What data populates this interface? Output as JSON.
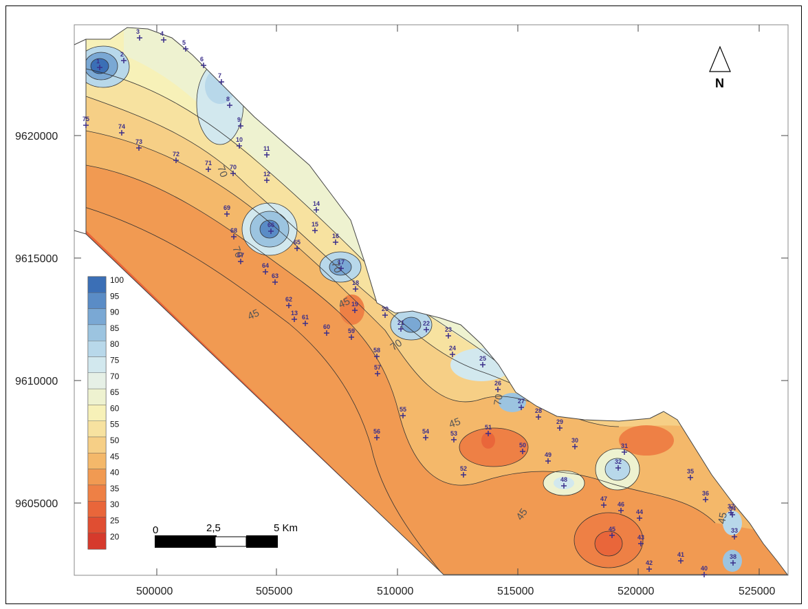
{
  "map": {
    "x_ticks": [
      "500000",
      "505000",
      "510000",
      "515000",
      "520000",
      "525000"
    ],
    "y_ticks": [
      "9620000",
      "9615000",
      "9610000",
      "9605000"
    ],
    "north_label": "N",
    "scale_bar": {
      "labels": [
        "0",
        "2,5",
        "5 Km"
      ]
    },
    "legend": {
      "levels": [
        {
          "value": "100",
          "color": "#3b6fb6"
        },
        {
          "value": "95",
          "color": "#5a8cc6"
        },
        {
          "value": "90",
          "color": "#7aa8d4"
        },
        {
          "value": "85",
          "color": "#9cc4e0"
        },
        {
          "value": "80",
          "color": "#b8d8ea"
        },
        {
          "value": "75",
          "color": "#d2e8ee"
        },
        {
          "value": "70",
          "color": "#e6f0e6"
        },
        {
          "value": "65",
          "color": "#eef2d0"
        },
        {
          "value": "60",
          "color": "#f7f1b8"
        },
        {
          "value": "55",
          "color": "#f7e2a0"
        },
        {
          "value": "50",
          "color": "#f6cf86"
        },
        {
          "value": "45",
          "color": "#f4b86a"
        },
        {
          "value": "40",
          "color": "#f19a52"
        },
        {
          "value": "35",
          "color": "#ee8045"
        },
        {
          "value": "30",
          "color": "#e9663a"
        },
        {
          "value": "25",
          "color": "#e04e32"
        },
        {
          "value": "20",
          "color": "#d63a2c"
        }
      ]
    },
    "contour_labels": [
      "70",
      "70",
      "70",
      "45",
      "45",
      "70",
      "45",
      "45",
      "70",
      "45"
    ],
    "points": [
      {
        "id": "1"
      },
      {
        "id": "2"
      },
      {
        "id": "3"
      },
      {
        "id": "4"
      },
      {
        "id": "5"
      },
      {
        "id": "6"
      },
      {
        "id": "7"
      },
      {
        "id": "8"
      },
      {
        "id": "9"
      },
      {
        "id": "10"
      },
      {
        "id": "11"
      },
      {
        "id": "12"
      },
      {
        "id": "13"
      },
      {
        "id": "14"
      },
      {
        "id": "15"
      },
      {
        "id": "16"
      },
      {
        "id": "17"
      },
      {
        "id": "18"
      },
      {
        "id": "19"
      },
      {
        "id": "20"
      },
      {
        "id": "21"
      },
      {
        "id": "22"
      },
      {
        "id": "23"
      },
      {
        "id": "24"
      },
      {
        "id": "25"
      },
      {
        "id": "26"
      },
      {
        "id": "27"
      },
      {
        "id": "28"
      },
      {
        "id": "29"
      },
      {
        "id": "30"
      },
      {
        "id": "31"
      },
      {
        "id": "32"
      },
      {
        "id": "33"
      },
      {
        "id": "34"
      },
      {
        "id": "35"
      },
      {
        "id": "36"
      },
      {
        "id": "37"
      },
      {
        "id": "38"
      },
      {
        "id": "40"
      },
      {
        "id": "41"
      },
      {
        "id": "42"
      },
      {
        "id": "43"
      },
      {
        "id": "44"
      },
      {
        "id": "45"
      },
      {
        "id": "46"
      },
      {
        "id": "47"
      },
      {
        "id": "48"
      },
      {
        "id": "49"
      },
      {
        "id": "50"
      },
      {
        "id": "51"
      },
      {
        "id": "52"
      },
      {
        "id": "53"
      },
      {
        "id": "54"
      },
      {
        "id": "55"
      },
      {
        "id": "56"
      },
      {
        "id": "57"
      },
      {
        "id": "58"
      },
      {
        "id": "59"
      },
      {
        "id": "60"
      },
      {
        "id": "61"
      },
      {
        "id": "62"
      },
      {
        "id": "63"
      },
      {
        "id": "64"
      },
      {
        "id": "65"
      },
      {
        "id": "66"
      },
      {
        "id": "67"
      },
      {
        "id": "68"
      },
      {
        "id": "69"
      },
      {
        "id": "70"
      },
      {
        "id": "71"
      },
      {
        "id": "72"
      },
      {
        "id": "73"
      },
      {
        "id": "74"
      },
      {
        "id": "75"
      }
    ]
  }
}
